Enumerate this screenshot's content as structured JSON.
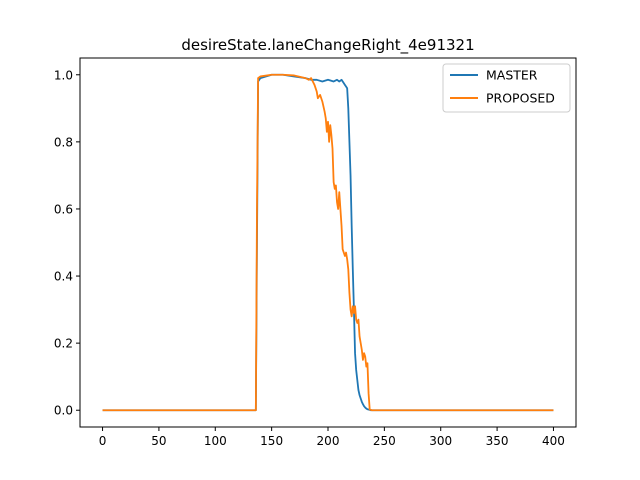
{
  "chart_data": {
    "type": "line",
    "title": "desireState.laneChangeRight_4e91321",
    "xlabel": "",
    "ylabel": "",
    "xlim": [
      -20,
      420
    ],
    "ylim": [
      -0.05,
      1.05
    ],
    "x_ticks": [
      0,
      50,
      100,
      150,
      200,
      250,
      300,
      350,
      400
    ],
    "y_ticks": [
      0.0,
      0.2,
      0.4,
      0.6,
      0.8,
      1.0
    ],
    "x_tick_labels": [
      "0",
      "50",
      "100",
      "150",
      "200",
      "250",
      "300",
      "350",
      "400"
    ],
    "y_tick_labels": [
      "0.0",
      "0.2",
      "0.4",
      "0.6",
      "0.8",
      "1.0"
    ],
    "grid": false,
    "legend_position": "top-right",
    "series": [
      {
        "name": "MASTER",
        "color": "#1f77b4",
        "x": [
          0,
          50,
          100,
          136,
          137,
          138,
          140,
          150,
          160,
          170,
          180,
          185,
          190,
          195,
          200,
          205,
          208,
          210,
          212,
          214,
          215,
          216,
          217,
          218,
          219,
          220,
          221,
          222,
          223,
          224,
          225,
          226,
          227,
          228,
          229,
          230,
          231,
          232,
          233,
          234,
          235,
          236,
          237,
          238,
          240,
          250,
          300,
          350,
          400
        ],
        "y": [
          0.0,
          0.0,
          0.0,
          0.0,
          0.5,
          0.98,
          0.99,
          1.0,
          1.0,
          0.995,
          0.99,
          0.985,
          0.985,
          0.98,
          0.985,
          0.98,
          0.985,
          0.98,
          0.985,
          0.975,
          0.97,
          0.965,
          0.96,
          0.9,
          0.8,
          0.7,
          0.55,
          0.42,
          0.3,
          0.17,
          0.12,
          0.09,
          0.06,
          0.045,
          0.035,
          0.025,
          0.018,
          0.012,
          0.008,
          0.005,
          0.003,
          0.002,
          0.001,
          0.0,
          0.0,
          0.0,
          0.0,
          0.0,
          0.0
        ]
      },
      {
        "name": "PROPOSED",
        "color": "#ff7f0e",
        "x": [
          0,
          50,
          100,
          136,
          137,
          138,
          140,
          150,
          160,
          170,
          180,
          183,
          185,
          188,
          190,
          191,
          193,
          195,
          197,
          198,
          199,
          200,
          201,
          202,
          203,
          204,
          205,
          206,
          207,
          208,
          209,
          210,
          211,
          212,
          213,
          214,
          215,
          216,
          217,
          218,
          219,
          220,
          221,
          222,
          223,
          224,
          225,
          226,
          227,
          228,
          229,
          230,
          231,
          232,
          233,
          234,
          235,
          236,
          237,
          238,
          239,
          240,
          250,
          300,
          350,
          400
        ],
        "y": [
          0.0,
          0.0,
          0.0,
          0.0,
          0.6,
          0.99,
          0.995,
          1.0,
          1.0,
          0.998,
          0.99,
          0.985,
          0.99,
          0.97,
          0.95,
          0.93,
          0.94,
          0.92,
          0.89,
          0.87,
          0.83,
          0.86,
          0.8,
          0.85,
          0.82,
          0.78,
          0.68,
          0.66,
          0.67,
          0.62,
          0.6,
          0.65,
          0.6,
          0.55,
          0.48,
          0.47,
          0.46,
          0.47,
          0.45,
          0.42,
          0.35,
          0.3,
          0.28,
          0.31,
          0.29,
          0.31,
          0.27,
          0.26,
          0.27,
          0.22,
          0.2,
          0.18,
          0.15,
          0.17,
          0.16,
          0.13,
          0.14,
          0.05,
          0.002,
          0.001,
          0.0,
          0.0,
          0.0,
          0.0,
          0.0,
          0.0
        ]
      }
    ]
  }
}
